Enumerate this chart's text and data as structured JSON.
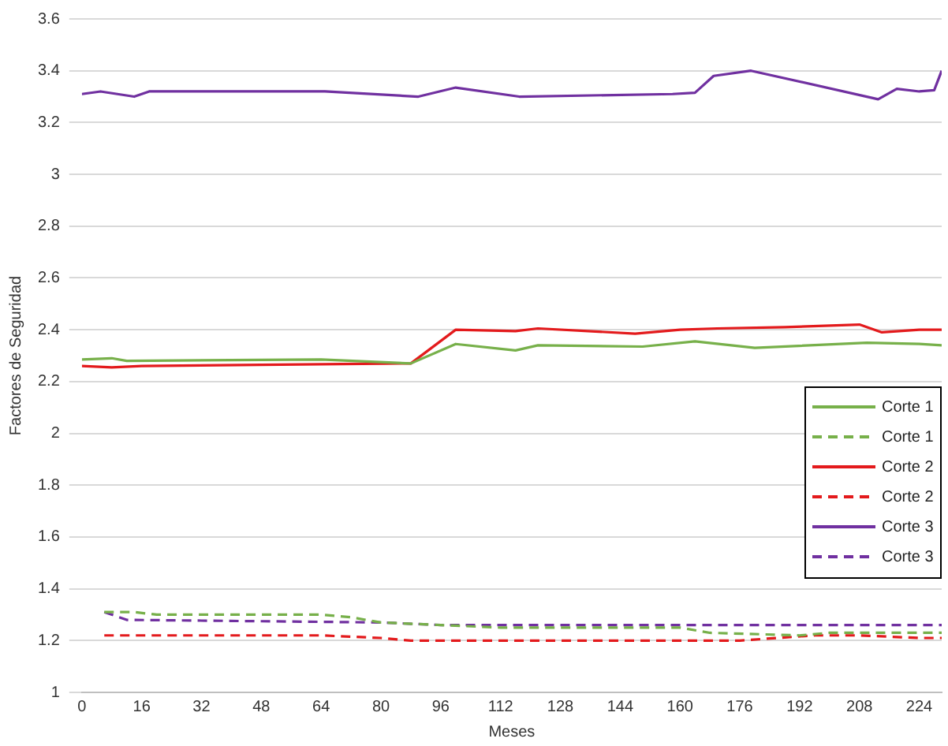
{
  "chart_data": {
    "type": "line",
    "xlabel": "Meses",
    "ylabel": "Factores de Seguridad",
    "xlim": [
      0,
      230
    ],
    "xticks": [
      0,
      16,
      32,
      48,
      64,
      80,
      96,
      112,
      128,
      144,
      160,
      176,
      192,
      208,
      224
    ],
    "ylim": [
      1,
      3.6
    ],
    "yticks": [
      1,
      1.2,
      1.4,
      1.6,
      1.8,
      2,
      2.2,
      2.4,
      2.6,
      2.8,
      3,
      3.2,
      3.4,
      3.6
    ],
    "grid": "y",
    "legend": "right",
    "marker": "none",
    "series": [
      {
        "name": "Corte 1",
        "color": "#77b04a",
        "line_style": "solid",
        "x": [
          0,
          8,
          12,
          64,
          88,
          100,
          116,
          122,
          150,
          164,
          180,
          210,
          224,
          230
        ],
        "values": [
          2.285,
          2.29,
          2.28,
          2.285,
          2.27,
          2.345,
          2.32,
          2.34,
          2.335,
          2.355,
          2.33,
          2.35,
          2.345,
          2.34
        ]
      },
      {
        "name": "Corte 1",
        "color": "#77b04a",
        "line_style": "dashed",
        "x": [
          6,
          14,
          20,
          64,
          72,
          80,
          96,
          112,
          160,
          168,
          192,
          200,
          230
        ],
        "values": [
          1.31,
          1.31,
          1.3,
          1.3,
          1.29,
          1.27,
          1.26,
          1.25,
          1.25,
          1.23,
          1.22,
          1.23,
          1.23
        ]
      },
      {
        "name": "Corte 2",
        "color": "#e31a1c",
        "line_style": "solid",
        "x": [
          0,
          8,
          16,
          88,
          100,
          116,
          122,
          148,
          160,
          170,
          188,
          208,
          214,
          224,
          230
        ],
        "values": [
          2.26,
          2.255,
          2.26,
          2.27,
          2.4,
          2.395,
          2.405,
          2.385,
          2.4,
          2.405,
          2.41,
          2.42,
          2.39,
          2.4,
          2.4
        ]
      },
      {
        "name": "Corte 2",
        "color": "#e31a1c",
        "line_style": "dashed",
        "x": [
          6,
          64,
          80,
          88,
          176,
          196,
          208,
          224,
          230
        ],
        "values": [
          1.22,
          1.22,
          1.21,
          1.2,
          1.2,
          1.22,
          1.22,
          1.21,
          1.21
        ]
      },
      {
        "name": "Corte 3",
        "color": "#7030a0",
        "line_style": "solid",
        "x": [
          0,
          5,
          14,
          18,
          65,
          90,
          100,
          117,
          158,
          164,
          169,
          179,
          213,
          218,
          224,
          228,
          230
        ],
        "values": [
          3.31,
          3.32,
          3.3,
          3.32,
          3.32,
          3.3,
          3.335,
          3.3,
          3.31,
          3.315,
          3.38,
          3.4,
          3.29,
          3.33,
          3.32,
          3.325,
          3.4
        ]
      },
      {
        "name": "Corte 3",
        "color": "#7030a0",
        "line_style": "dashed",
        "x": [
          6,
          12,
          80,
          96,
          230
        ],
        "values": [
          1.31,
          1.28,
          1.27,
          1.26,
          1.26
        ]
      }
    ]
  }
}
